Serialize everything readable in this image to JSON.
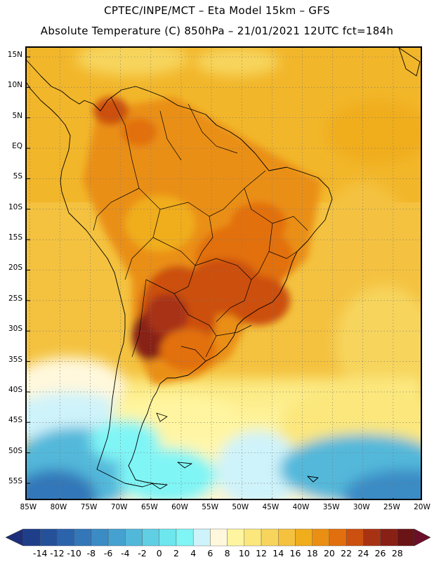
{
  "header": {
    "line1": "CPTEC/INPE/MCT –  Eta Model 15km – GFS",
    "line2": "Absolute Temperature (C) 850hPa – 21/01/2021 12UTC fct=184h"
  },
  "map": {
    "lat_labels": [
      "15N",
      "10N",
      "5N",
      "EQ",
      "5S",
      "10S",
      "15S",
      "20S",
      "25S",
      "30S",
      "35S",
      "40S",
      "45S",
      "50S",
      "55S"
    ],
    "lat_values": [
      15,
      10,
      5,
      0,
      -5,
      -10,
      -15,
      -20,
      -25,
      -30,
      -35,
      -40,
      -45,
      -50,
      -55
    ],
    "lon_labels": [
      "85W",
      "80W",
      "75W",
      "70W",
      "65W",
      "60W",
      "55W",
      "50W",
      "45W",
      "40W",
      "35W",
      "30W",
      "25W",
      "20W"
    ],
    "lon_values": [
      -85,
      -80,
      -75,
      -70,
      -65,
      -60,
      -55,
      -50,
      -45,
      -40,
      -35,
      -30,
      -25,
      -20
    ],
    "extent": {
      "lon_min": -85.5,
      "lon_max": -20,
      "lat_min": -58,
      "lat_max": 16.5
    }
  },
  "colorbar": {
    "labels": [
      "-14",
      "-12",
      "-10",
      "-8",
      "-6",
      "-4",
      "-2",
      "0",
      "2",
      "4",
      "6",
      "8",
      "10",
      "12",
      "14",
      "16",
      "18",
      "20",
      "22",
      "24",
      "26",
      "28"
    ],
    "colors": [
      "#1f3e8a",
      "#25519b",
      "#2c64ab",
      "#3377b9",
      "#3b8bc5",
      "#45a1cf",
      "#52b8da",
      "#60cfe4",
      "#6ee6ee",
      "#80f5f5",
      "#cff3fa",
      "#fff8dc",
      "#fff5a0",
      "#fbe77c",
      "#f7d55d",
      "#f4c23f",
      "#f0ad1c",
      "#ea8f14",
      "#e26f0e",
      "#cc5010",
      "#a83313",
      "#882015",
      "#6b1416"
    ],
    "arrow_left": "#1d2f78",
    "arrow_right": "#6b0f2b"
  }
}
